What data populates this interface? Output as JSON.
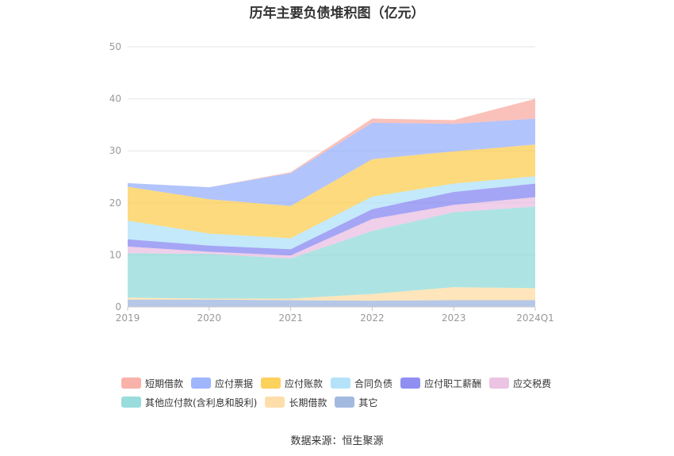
{
  "chart_data": {
    "type": "area",
    "title": "历年主要负债堆积图（亿元）",
    "categories": [
      "2019",
      "2020",
      "2021",
      "2022",
      "2023",
      "2024Q1"
    ],
    "ylim": [
      0,
      50
    ],
    "yticks": [
      0,
      10,
      20,
      30,
      40,
      50
    ],
    "grid": true,
    "legend_position": "bottom",
    "stacking_order": [
      "其它",
      "长期借款",
      "其他应付款(含利息和股利)",
      "应交税费",
      "应付职工薪酬",
      "合同负债",
      "应付账款",
      "应付票据",
      "短期借款"
    ],
    "series": [
      {
        "name": "短期借款",
        "color": "#f7a49a",
        "values": [
          0,
          0,
          0.2,
          0.8,
          0.7,
          3.8
        ]
      },
      {
        "name": "应付票据",
        "color": "#8ea8fb",
        "values": [
          0.7,
          2.3,
          6.3,
          7.0,
          5.3,
          5.0
        ]
      },
      {
        "name": "应付账款",
        "color": "#fbc940",
        "values": [
          6.5,
          6.6,
          6.2,
          7.2,
          6.2,
          6.1
        ]
      },
      {
        "name": "合同负债",
        "color": "#a7def8",
        "values": [
          3.6,
          2.3,
          2.1,
          2.4,
          1.6,
          1.4
        ]
      },
      {
        "name": "应付职工薪酬",
        "color": "#7b7bf0",
        "values": [
          1.4,
          1.2,
          1.2,
          1.9,
          2.5,
          2.6
        ]
      },
      {
        "name": "应交税费",
        "color": "#e8b8de",
        "values": [
          1.3,
          0.4,
          0.6,
          2.3,
          1.4,
          1.8
        ]
      },
      {
        "name": "其他应付款(含利息和股利)",
        "color": "#86d7d6",
        "values": [
          8.5,
          8.6,
          7.7,
          12.1,
          14.4,
          15.7
        ]
      },
      {
        "name": "长期借款",
        "color": "#fdd89b",
        "values": [
          0.4,
          0.2,
          0.3,
          1.3,
          2.5,
          2.3
        ]
      },
      {
        "name": "其它",
        "color": "#93aedb",
        "values": [
          1.4,
          1.4,
          1.3,
          1.2,
          1.3,
          1.3
        ]
      }
    ]
  },
  "legend": {
    "items": [
      {
        "label": "短期借款",
        "color": "#f7a49a"
      },
      {
        "label": "应付票据",
        "color": "#8ea8fb"
      },
      {
        "label": "应付账款",
        "color": "#fbc940"
      },
      {
        "label": "合同负债",
        "color": "#a7def8"
      },
      {
        "label": "应付职工薪酬",
        "color": "#7b7bf0"
      },
      {
        "label": "应交税费",
        "color": "#e8b8de"
      },
      {
        "label": "其他应付款(含利息和股利)",
        "color": "#86d7d6"
      },
      {
        "label": "长期借款",
        "color": "#fdd89b"
      },
      {
        "label": "其它",
        "color": "#93aedb"
      }
    ]
  },
  "source_text": "数据来源：恒生聚源"
}
